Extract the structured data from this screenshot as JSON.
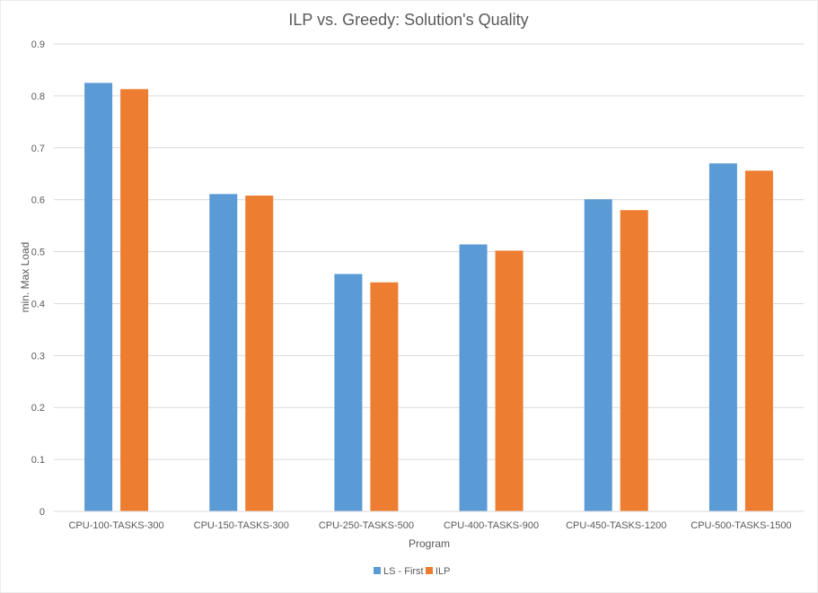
{
  "chart_data": {
    "type": "bar",
    "title": "ILP vs. Greedy: Solution's Quality",
    "xlabel": "Program",
    "ylabel": "min. Max Load",
    "categories": [
      "CPU-100-TASKS-300",
      "CPU-150-TASKS-300",
      "CPU-250-TASKS-500",
      "CPU-400-TASKS-900",
      "CPU-450-TASKS-1200",
      "CPU-500-TASKS-1500"
    ],
    "series": [
      {
        "name": "LS - First",
        "color": "#5B9BD5",
        "values": [
          0.825,
          0.611,
          0.457,
          0.514,
          0.601,
          0.67
        ]
      },
      {
        "name": "ILP",
        "color": "#ED7D31",
        "values": [
          0.813,
          0.608,
          0.441,
          0.502,
          0.58,
          0.656
        ]
      }
    ],
    "ylim": [
      0,
      0.9
    ],
    "yticks": [
      "0",
      "0.1",
      "0.2",
      "0.3",
      "0.4",
      "0.5",
      "0.6",
      "0.7",
      "0.8",
      "0.9"
    ],
    "grid": true,
    "legend_position": "bottom"
  }
}
